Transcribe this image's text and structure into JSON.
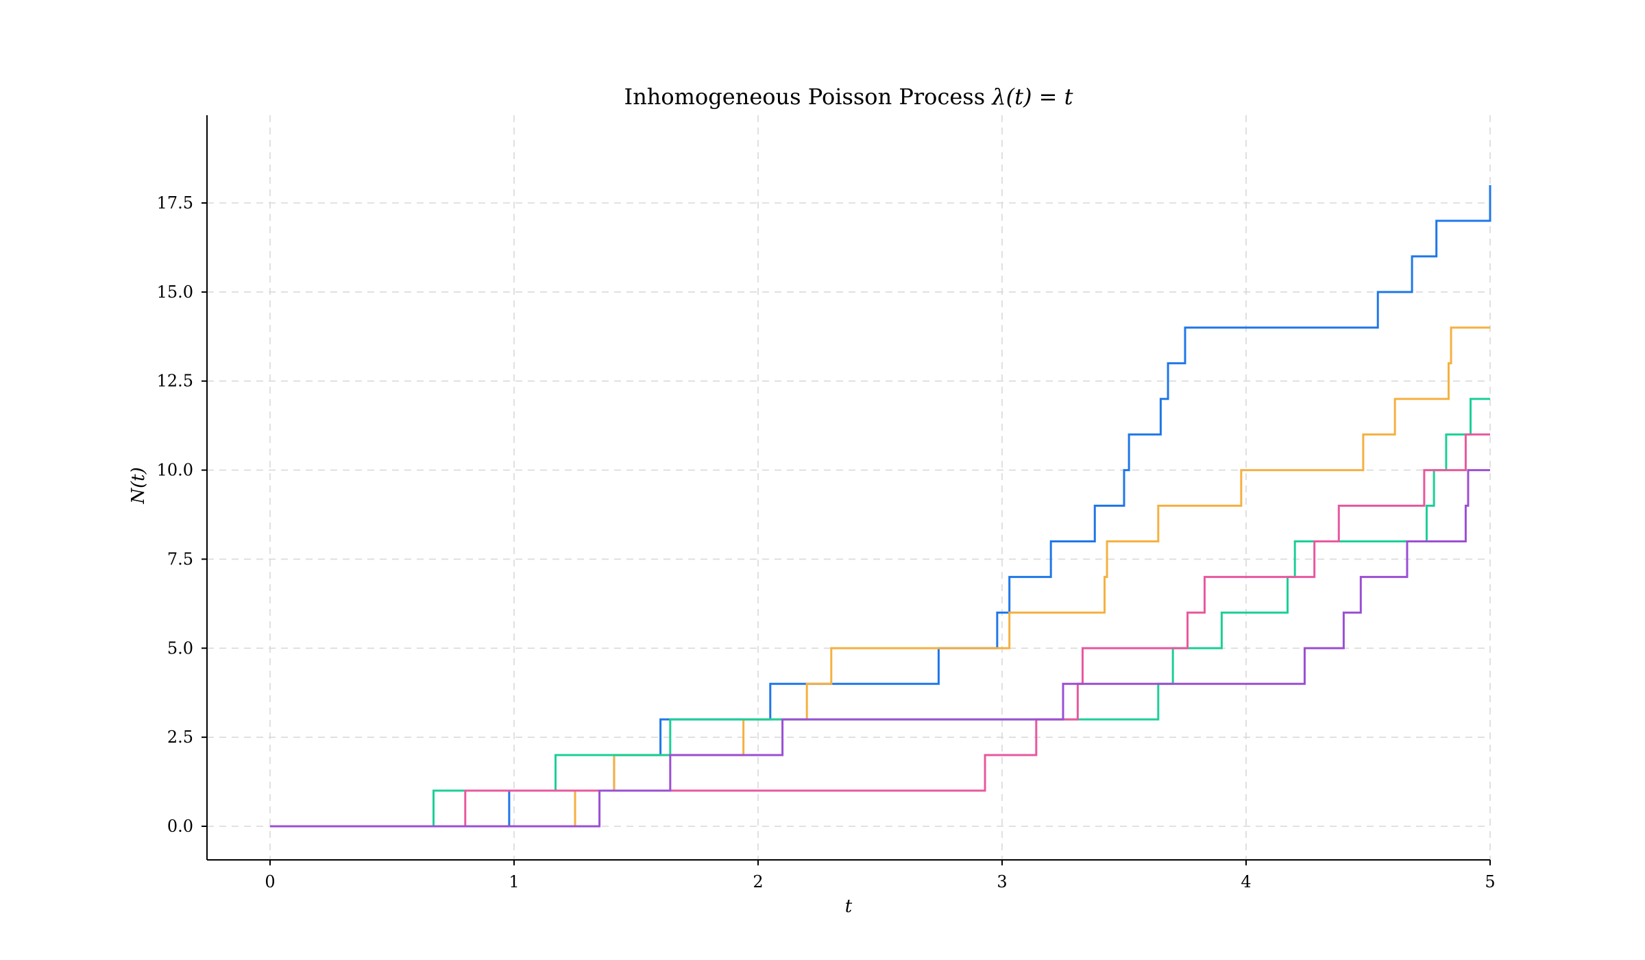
{
  "chart_data": {
    "type": "line",
    "title": "Inhomogeneous Poisson Process λ(t) = t",
    "title_parts": {
      "text": "Inhomogeneous Poisson Process ",
      "math": "λ(t) = t"
    },
    "xlabel": "t",
    "ylabel": "N(t)",
    "xlim": [
      -0.26,
      5.0
    ],
    "ylim": [
      -0.95,
      20.0
    ],
    "x_ticks": [
      0,
      1,
      2,
      3,
      4,
      5
    ],
    "x_tick_labels": [
      "0",
      "1",
      "2",
      "3",
      "4",
      "5"
    ],
    "y_ticks": [
      0.0,
      2.5,
      5.0,
      7.5,
      10.0,
      12.5,
      15.0,
      17.5
    ],
    "y_tick_labels": [
      "0.0",
      "2.5",
      "5.0",
      "7.5",
      "10.0",
      "12.5",
      "15.0",
      "17.5"
    ],
    "grid": true,
    "step": "post",
    "series": [
      {
        "color": "#1f77e8",
        "x": [
          0,
          0.98,
          1.41,
          1.6,
          2.05,
          2.74,
          2.98,
          3.03,
          3.2,
          3.38,
          3.5,
          3.52,
          3.65,
          3.68,
          3.75,
          4.54,
          4.68,
          4.78,
          5.0
        ],
        "y": [
          0,
          1,
          2,
          3,
          4,
          5,
          6,
          7,
          8,
          9,
          10,
          11,
          12,
          13,
          14,
          15,
          16,
          17,
          18
        ]
      },
      {
        "color": "#f5b041",
        "x": [
          0,
          1.25,
          1.41,
          1.94,
          2.2,
          2.3,
          3.03,
          3.42,
          3.43,
          3.64,
          3.98,
          4.48,
          4.61,
          4.83,
          4.84
        ],
        "y": [
          0,
          1,
          2,
          3,
          4,
          5,
          6,
          7,
          8,
          9,
          10,
          11,
          12,
          13,
          14
        ]
      },
      {
        "color": "#1ccf97",
        "x": [
          0,
          0.67,
          1.17,
          1.64,
          3.64,
          3.7,
          3.9,
          4.17,
          4.2,
          4.74,
          4.77,
          4.82,
          4.92
        ],
        "y": [
          0,
          1,
          2,
          3,
          4,
          5,
          6,
          7,
          8,
          9,
          10,
          11,
          12
        ]
      },
      {
        "color": "#e8589e",
        "x": [
          0,
          0.8,
          2.93,
          3.14,
          3.31,
          3.33,
          3.76,
          3.83,
          4.28,
          4.38,
          4.73,
          4.9
        ],
        "y": [
          0,
          1,
          2,
          3,
          4,
          5,
          6,
          7,
          8,
          9,
          10,
          11
        ]
      },
      {
        "color": "#9b4fd4",
        "x": [
          0,
          1.35,
          1.64,
          2.1,
          3.25,
          4.24,
          4.4,
          4.47,
          4.66,
          4.9,
          4.91
        ],
        "y": [
          0,
          1,
          2,
          3,
          4,
          5,
          6,
          7,
          8,
          9,
          10
        ]
      }
    ]
  }
}
